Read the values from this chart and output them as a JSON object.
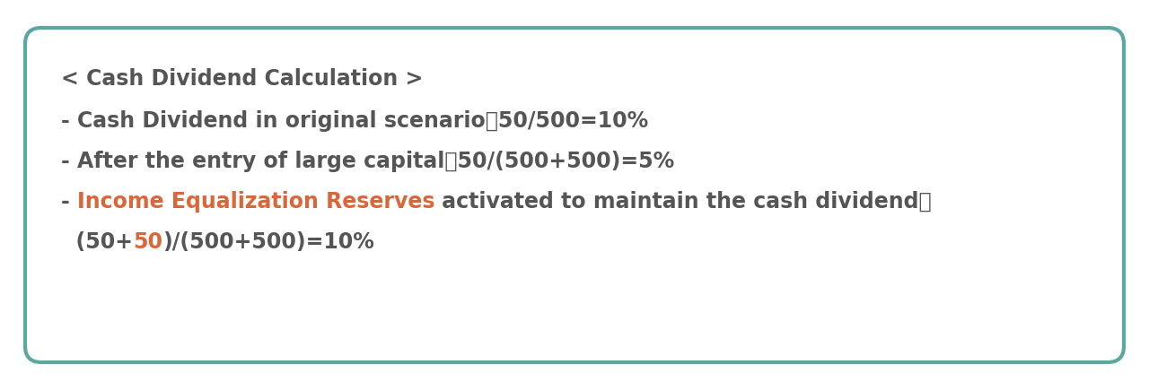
{
  "background_color": "#ffffff",
  "border_color": "#5ba8a0",
  "border_linewidth": 3.0,
  "title_text": "< Cash Dividend Calculation >",
  "line1_text": "- Cash Dividend in original scenario：50/500=10%",
  "line2_text": "- After the entry of large capital：50/(500+500)=5%",
  "line3a_text": "- ",
  "line3b_text": "Income Equalization Reserves",
  "line3c_text": " activated to maintain the cash dividend：",
  "line4_prefix": "  (50+",
  "line4_highlight": "50",
  "line4_suffix": ")/(500+500)=10%",
  "gray_color": "#555555",
  "orange_color": "#d9673a",
  "text_fontsize": 17,
  "bold_fontweight": "bold",
  "figwidth": 12.8,
  "figheight": 4.27,
  "dpi": 100
}
